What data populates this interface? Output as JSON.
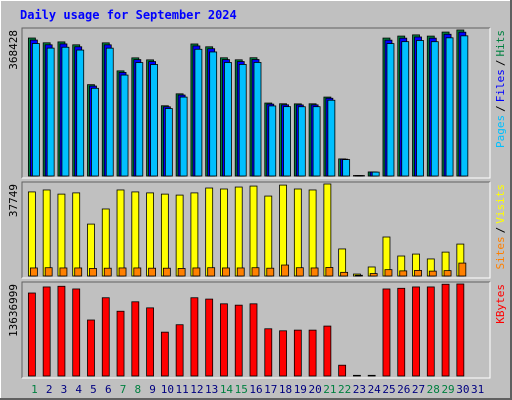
{
  "chart_data": [
    {
      "type": "bar",
      "title": "Daily usage for September 2024",
      "ylim": [
        0,
        368428
      ],
      "yticks": [
        368428
      ],
      "legend_separator": "/",
      "series": [
        {
          "name": "Hits",
          "color": "#008040",
          "values": [
            348210,
            336150,
            338420,
            331060,
            230480,
            336020,
            265310,
            298140,
            293050,
            177260,
            207380,
            333170,
            326040,
            298300,
            293210,
            298450,
            184120,
            182300,
            182050,
            182210,
            199170,
            43150,
            1230,
            10240,
            348050,
            353120,
            356140,
            353060,
            363200,
            368428,
            null
          ]
        },
        {
          "name": "Files",
          "color": "#0000FF",
          "values": [
            343000,
            331100,
            333300,
            326100,
            227000,
            331000,
            261300,
            293700,
            288700,
            174600,
            204300,
            328200,
            321200,
            293800,
            288800,
            294000,
            181400,
            179600,
            179300,
            179500,
            196200,
            42500,
            1210,
            10090,
            342800,
            347800,
            350800,
            347800,
            357700,
            362900,
            null
          ]
        },
        {
          "name": "Pages",
          "color": "#00C0FF",
          "values": [
            334300,
            322700,
            324900,
            317800,
            221300,
            322600,
            254700,
            286200,
            281300,
            170200,
            199100,
            319800,
            313000,
            286400,
            281500,
            286500,
            176800,
            175000,
            174800,
            174900,
            191200,
            41400,
            1180,
            9830,
            334100,
            339000,
            341900,
            338900,
            348700,
            353700,
            null
          ]
        }
      ]
    },
    {
      "type": "bar",
      "ylim": [
        0,
        37749
      ],
      "yticks": [
        37749
      ],
      "legend_separator": "/",
      "series": [
        {
          "name": "Visits",
          "color": "#FFFF00",
          "values": [
            34500,
            35300,
            33600,
            34100,
            21300,
            27500,
            35300,
            34500,
            34100,
            33600,
            33200,
            34100,
            36100,
            35700,
            36500,
            36900,
            32800,
            37300,
            35700,
            35300,
            37749,
            11100,
            800,
            3700,
            16000,
            8200,
            9000,
            7000,
            9800,
            13100,
            null
          ]
        },
        {
          "name": "Sites",
          "color": "#FF8000",
          "values": [
            3300,
            3400,
            3300,
            3300,
            3100,
            3200,
            3300,
            3300,
            3200,
            3200,
            3100,
            3300,
            3400,
            3300,
            3300,
            3400,
            3200,
            4500,
            3400,
            3300,
            3500,
            1500,
            300,
            1000,
            2600,
            2100,
            2300,
            2000,
            2200,
            5300,
            null
          ]
        }
      ]
    },
    {
      "type": "bar",
      "ylim": [
        0,
        13636999
      ],
      "yticks": [
        13636999
      ],
      "series": [
        {
          "name": "KBytes",
          "color": "#FF0000",
          "values": [
            12300000,
            13200000,
            13300000,
            12900000,
            8300000,
            11600000,
            9600000,
            11000000,
            10100000,
            6500000,
            7600000,
            11600000,
            11400000,
            10700000,
            10500000,
            10700000,
            7000000,
            6700000,
            6800000,
            6800000,
            7400000,
            1600000,
            100000,
            100000,
            12900000,
            13000000,
            13200000,
            13200000,
            13600000,
            13636999,
            null
          ]
        }
      ],
      "categories": [
        "1",
        "2",
        "3",
        "4",
        "5",
        "6",
        "7",
        "8",
        "9",
        "10",
        "11",
        "12",
        "13",
        "14",
        "15",
        "16",
        "17",
        "18",
        "19",
        "20",
        "21",
        "22",
        "23",
        "24",
        "25",
        "26",
        "27",
        "28",
        "29",
        "30",
        "31"
      ],
      "category_colors": [
        "#008040",
        "#000080",
        "#000080",
        "#000080",
        "#000080",
        "#000080",
        "#008040",
        "#008040",
        "#000080",
        "#000080",
        "#000080",
        "#000080",
        "#000080",
        "#008040",
        "#008040",
        "#000080",
        "#000080",
        "#000080",
        "#000080",
        "#000080",
        "#008040",
        "#008040",
        "#000080",
        "#000080",
        "#000080",
        "#000080",
        "#000080",
        "#008040",
        "#008040",
        "#000080",
        "#000080"
      ]
    }
  ]
}
